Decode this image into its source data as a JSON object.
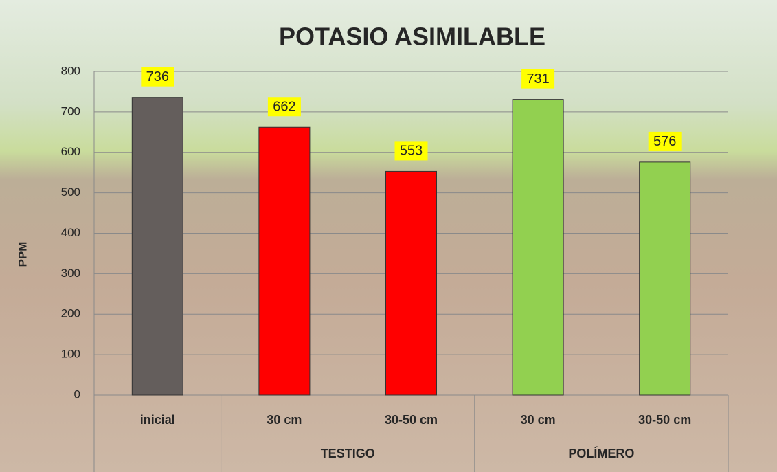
{
  "chart_data": {
    "type": "bar",
    "title": "POTASIO ASIMILABLE",
    "y_label": "PPM",
    "categories": [
      "inicial",
      "30 cm",
      "30-50 cm",
      "30 cm",
      "30-50 cm"
    ],
    "groups": [
      {
        "name": null,
        "span": 1
      },
      {
        "name": "TESTIGO",
        "span": 2
      },
      {
        "name": "POLÍMERO",
        "span": 2
      }
    ],
    "values": [
      736,
      662,
      553,
      731,
      576
    ],
    "colors": [
      "#645e5c",
      "#ff0000",
      "#ff0000",
      "#92d050",
      "#92d050"
    ],
    "ylim": [
      0,
      800
    ],
    "yticks": [
      0,
      100,
      200,
      300,
      400,
      500,
      600,
      700,
      800
    ],
    "grid": true
  }
}
